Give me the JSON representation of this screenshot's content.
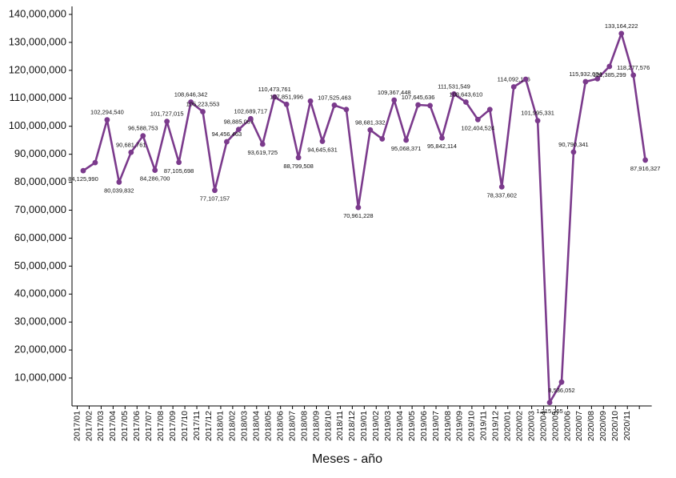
{
  "chart_data": {
    "type": "line",
    "x_label": "Meses - año",
    "categories": [
      "2017/01",
      "2017/02",
      "2017/03",
      "2017/04",
      "2017/05",
      "2017/06",
      "2017/07",
      "2017/08",
      "2017/09",
      "2017/10",
      "2017/11",
      "2017/12",
      "2018/01",
      "2018/02",
      "2018/03",
      "2018/04",
      "2018/05",
      "2018/06",
      "2018/07",
      "2018/08",
      "2018/09",
      "2018/10",
      "2018/11",
      "2018/12",
      "2019/01",
      "2019/02",
      "2019/03",
      "2019/04",
      "2019/05",
      "2019/06",
      "2019/07",
      "2019/08",
      "2019/09",
      "2019/10",
      "2019/11",
      "2019/12",
      "2020/01",
      "2020/02",
      "2020/03",
      "2020/04",
      "2020/05",
      "2020/06",
      "2020/07",
      "2020/08",
      "2020/09",
      "2020/10",
      "2020/11",
      null
    ],
    "series": [
      {
        "color": "#7b3a8c",
        "values": [
          84125990,
          87000000,
          102294540,
          80039832,
          90681761,
          96588753,
          84286700,
          101727015,
          87105698,
          108646342,
          105223553,
          77107157,
          94456463,
          98885057,
          102689717,
          93619725,
          110473761,
          107851996,
          88799508,
          109000000,
          94645631,
          107525463,
          106000000,
          70961228,
          98681332,
          95500000,
          109367448,
          95068371,
          107645636,
          107400000,
          95842114,
          111531549,
          108643610,
          102404524,
          106000000,
          78337602,
          114092176,
          116800000,
          101995331,
          1215255,
          8536052,
          90790341,
          115932684,
          117000000,
          121385299,
          133164222,
          118277576,
          87916327
        ],
        "value_labels": [
          "84,125,990",
          null,
          "102,294,540",
          "80,039,832",
          "90,681,761",
          "96,588,753",
          "84,286,700",
          "101,727,015",
          "87,105,698",
          "108,646,342",
          "105,223,553",
          "77,107,157",
          "94,456,463",
          "98,885,057",
          "102,689,717",
          "93,619,725",
          "110,473,761",
          "107,851,996",
          "88,799,508",
          null,
          "94,645,631",
          "107,525,463",
          null,
          "70,961,228",
          "98,681,332",
          null,
          "109,367,448",
          "95,068,371",
          "107,645,636",
          null,
          "95,842,114",
          "111,531,549",
          "108,643,610",
          "102,404,524",
          null,
          "78,337,602",
          "114,092,176",
          null,
          "101,995,331",
          "1,215,255",
          "8,536,052",
          "90,790,341",
          "115,932,684",
          null,
          "121,385,299",
          "133,164,222",
          "118,277,576",
          "87,916,327"
        ]
      }
    ],
    "ylim": [
      0,
      140000000
    ],
    "yticks": [
      {
        "value": 10000000,
        "label": "10,000,000"
      },
      {
        "value": 20000000,
        "label": "20,000,000"
      },
      {
        "value": 30000000,
        "label": "30,000,000"
      },
      {
        "value": 40000000,
        "label": "40,000,000"
      },
      {
        "value": 50000000,
        "label": "50,000,000"
      },
      {
        "value": 60000000,
        "label": "60,000,000"
      },
      {
        "value": 70000000,
        "label": "70,000,000"
      },
      {
        "value": 80000000,
        "label": "80,000,000"
      },
      {
        "value": 90000000,
        "label": "90,000,000"
      },
      {
        "value": 100000000,
        "label": "100,000,000"
      },
      {
        "value": 110000000,
        "label": "110,000,000"
      },
      {
        "value": 120000000,
        "label": "120,000,000"
      },
      {
        "value": 130000000,
        "label": "130,000,000"
      },
      {
        "value": 140000000,
        "label": "140,000,000"
      }
    ]
  }
}
